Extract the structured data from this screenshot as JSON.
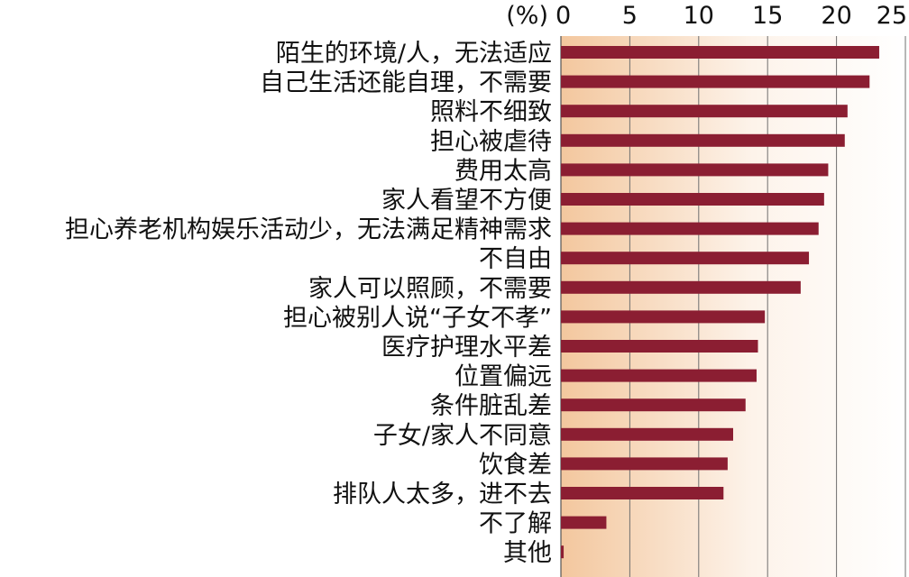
{
  "chart_data": {
    "type": "bar",
    "orientation": "horizontal",
    "unit_label": "(%)",
    "categories": [
      "陌生的环境/人，无法适应",
      "自己生活还能自理，不需要",
      "照料不细致",
      "担心被虐待",
      "费用太高",
      "家人看望不方便",
      "担心养老机构娱乐活动少，无法满足精神需求",
      "不自由",
      "家人可以照顾，不需要",
      "担心被别人说“子女不孝”",
      "医疗护理水平差",
      "位置偏远",
      "条件脏乱差",
      "子女/家人不同意",
      "饮食差",
      "排队人太多，进不去",
      "不了解",
      "其他"
    ],
    "values": [
      23.1,
      22.4,
      20.8,
      20.6,
      19.4,
      19.1,
      18.7,
      18.0,
      17.4,
      14.8,
      14.3,
      14.2,
      13.4,
      12.5,
      12.1,
      11.8,
      3.3,
      0.2
    ],
    "xlim": [
      0,
      25
    ],
    "xticks": [
      0,
      5,
      10,
      15,
      20,
      25
    ],
    "grid": true,
    "bar_color": "#8b1e32",
    "background_gradient": [
      "#f3c79e",
      "#fdf3ea",
      "#ffffff"
    ]
  }
}
